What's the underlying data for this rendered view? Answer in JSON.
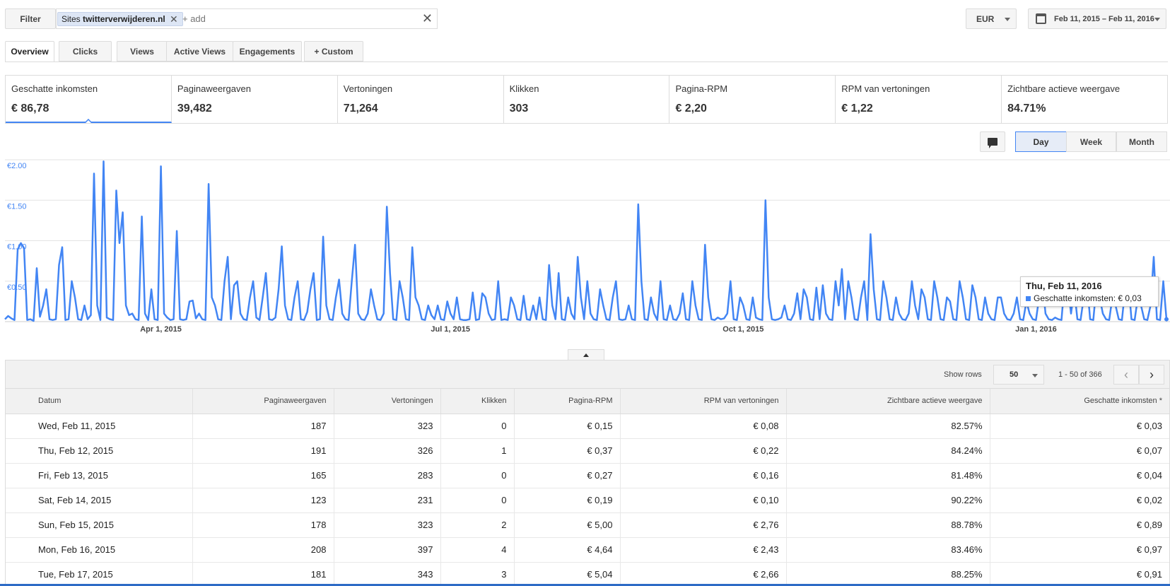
{
  "filter": {
    "button_label": "Filter",
    "chip_prefix": "Sites",
    "chip_value": "twitterverwijderen.nl",
    "chip_remove": "✕",
    "add_placeholder": "+ add",
    "clear": "✕"
  },
  "currency": {
    "label": "EUR"
  },
  "daterange": {
    "label": "Feb 11, 2015 – Feb 11, 2016"
  },
  "tabs": [
    {
      "label": "Overview"
    },
    {
      "label": "Clicks"
    },
    {
      "label": "Views"
    },
    {
      "label": "Active Views"
    },
    {
      "label": "Engagements"
    },
    {
      "label": "+ Custom"
    }
  ],
  "metrics": [
    {
      "label": "Geschatte inkomsten",
      "value": "€ 86,78"
    },
    {
      "label": "Paginaweergaven",
      "value": "39,482"
    },
    {
      "label": "Vertoningen",
      "value": "71,264"
    },
    {
      "label": "Klikken",
      "value": "303"
    },
    {
      "label": "Pagina-RPM",
      "value": "€ 2,20"
    },
    {
      "label": "RPM van vertoningen",
      "value": "€ 1,22"
    },
    {
      "label": "Zichtbare actieve weergave",
      "value": "84.71%"
    }
  ],
  "granularity": {
    "day": "Day",
    "week": "Week",
    "month": "Month"
  },
  "tooltip": {
    "date": "Thu, Feb 11, 2016",
    "series": "Geschatte inkomsten:",
    "value": "€ 0,03"
  },
  "chart_data": {
    "type": "line",
    "x_tick_labels": [
      "Apr 1, 2015",
      "Jul 1, 2015",
      "Oct 1, 2015",
      "Jan 1, 2016"
    ],
    "y_tick_labels": [
      "€0.50",
      "€1.00",
      "€1.50",
      "€2.00"
    ],
    "ylim": [
      0,
      2.0
    ],
    "line_color": "#4285f4",
    "series": [
      {
        "values": [
          0.03,
          0.07,
          0.04,
          0.02,
          0.89,
          0.97,
          0.91,
          0.02,
          0.03,
          0.01,
          0.66,
          0.06,
          0.2,
          0.4,
          0.03,
          0.02,
          0.03,
          0.7,
          0.92,
          0.02,
          0.03,
          0.5,
          0.3,
          0.03,
          0.02,
          0.2,
          0.03,
          0.08,
          1.83,
          0.2,
          0.02,
          1.98,
          0.05,
          0.03,
          0.02,
          1.62,
          0.97,
          1.35,
          0.2,
          0.08,
          0.1,
          0.03,
          0.02,
          1.3,
          0.1,
          0.02,
          0.4,
          0.03,
          0.02,
          1.92,
          0.1,
          0.05,
          0.02,
          0.03,
          1.12,
          0.03,
          0.02,
          0.03,
          0.25,
          0.26,
          0.04,
          0.1,
          0.03,
          0.02,
          1.7,
          0.3,
          0.2,
          0.03,
          0.02,
          0.5,
          0.8,
          0.03,
          0.45,
          0.5,
          0.1,
          0.03,
          0.02,
          0.3,
          0.5,
          0.05,
          0.02,
          0.3,
          0.6,
          0.03,
          0.02,
          0.05,
          0.4,
          0.93,
          0.2,
          0.03,
          0.02,
          0.3,
          0.5,
          0.03,
          0.02,
          0.12,
          0.4,
          0.6,
          0.02,
          0.03,
          1.05,
          0.2,
          0.03,
          0.02,
          0.3,
          0.52,
          0.1,
          0.03,
          0.02,
          0.5,
          0.95,
          0.1,
          0.03,
          0.02,
          0.1,
          0.4,
          0.2,
          0.03,
          0.02,
          0.1,
          1.42,
          0.6,
          0.03,
          0.02,
          0.5,
          0.3,
          0.03,
          0.02,
          0.92,
          0.3,
          0.2,
          0.03,
          0.02,
          0.2,
          0.08,
          0.03,
          0.2,
          0.03,
          0.02,
          0.25,
          0.1,
          0.03,
          0.3,
          0.03,
          0.02,
          0.02,
          0.03,
          0.36,
          0.02,
          0.03,
          0.35,
          0.3,
          0.1,
          0.02,
          0.03,
          0.5,
          0.02,
          0.03,
          0.02,
          0.3,
          0.2,
          0.03,
          0.02,
          0.32,
          0.03,
          0.02,
          0.2,
          0.03,
          0.3,
          0.03,
          0.02,
          0.7,
          0.2,
          0.03,
          0.6,
          0.03,
          0.02,
          0.3,
          0.1,
          0.03,
          0.8,
          0.3,
          0.03,
          0.5,
          0.1,
          0.03,
          0.02,
          0.4,
          0.2,
          0.03,
          0.02,
          0.3,
          0.5,
          0.03,
          0.02,
          0.03,
          0.2,
          0.03,
          0.02,
          1.45,
          0.5,
          0.03,
          0.02,
          0.3,
          0.1,
          0.02,
          0.5,
          0.03,
          0.02,
          0.2,
          0.03,
          0.02,
          0.1,
          0.35,
          0.03,
          0.02,
          0.5,
          0.2,
          0.03,
          0.02,
          0.95,
          0.3,
          0.03,
          0.02,
          0.05,
          0.03,
          0.04,
          0.1,
          0.5,
          0.03,
          0.02,
          0.3,
          0.2,
          0.03,
          0.02,
          0.3,
          0.05,
          0.03,
          0.02,
          1.5,
          0.3,
          0.03,
          0.02,
          0.03,
          0.05,
          0.2,
          0.03,
          0.02,
          0.1,
          0.35,
          0.03,
          0.4,
          0.3,
          0.03,
          0.02,
          0.42,
          0.03,
          0.45,
          0.1,
          0.03,
          0.02,
          0.5,
          0.2,
          0.65,
          0.03,
          0.5,
          0.3,
          0.03,
          0.02,
          0.3,
          0.5,
          0.02,
          1.08,
          0.4,
          0.03,
          0.02,
          0.5,
          0.3,
          0.03,
          0.02,
          0.3,
          0.1,
          0.03,
          0.02,
          0.1,
          0.5,
          0.2,
          0.03,
          0.4,
          0.3,
          0.03,
          0.02,
          0.5,
          0.3,
          0.03,
          0.02,
          0.3,
          0.25,
          0.03,
          0.02,
          0.5,
          0.3,
          0.03,
          0.02,
          0.45,
          0.3,
          0.03,
          0.02,
          0.3,
          0.1,
          0.03,
          0.02,
          0.3,
          0.3,
          0.1,
          0.03,
          0.02,
          0.1,
          0.3,
          0.03,
          0.02,
          0.25,
          0.1,
          0.03,
          0.02,
          0.3,
          0.5,
          0.1,
          0.03,
          0.02,
          0.05,
          0.03,
          0.02,
          0.5,
          0.45,
          0.1,
          0.4,
          0.03,
          0.02,
          0.3,
          0.5,
          0.03,
          0.02,
          0.45,
          0.3,
          0.1,
          0.03,
          0.02,
          0.3,
          0.2,
          0.03,
          0.02,
          0.4,
          0.5,
          0.03,
          0.02,
          0.3,
          0.2,
          0.03,
          0.02,
          0.2,
          0.8,
          0.03,
          0.02,
          0.5,
          0.03
        ]
      }
    ]
  },
  "pager": {
    "show_rows_label": "Show rows",
    "rows_value": "50",
    "range": "1 - 50 of 366",
    "prev": "‹",
    "next": "›"
  },
  "table": {
    "headers": [
      "Datum",
      "Paginaweergaven",
      "Vertoningen",
      "Klikken",
      "Pagina-RPM",
      "RPM van vertoningen",
      "Zichtbare actieve weergave",
      "Geschatte inkomsten *"
    ],
    "rows": [
      [
        "Wed, Feb 11, 2015",
        "187",
        "323",
        "0",
        "€ 0,15",
        "€ 0,08",
        "82.57%",
        "€ 0,03"
      ],
      [
        "Thu, Feb 12, 2015",
        "191",
        "326",
        "1",
        "€ 0,37",
        "€ 0,22",
        "84.24%",
        "€ 0,07"
      ],
      [
        "Fri, Feb 13, 2015",
        "165",
        "283",
        "0",
        "€ 0,27",
        "€ 0,16",
        "81.48%",
        "€ 0,04"
      ],
      [
        "Sat, Feb 14, 2015",
        "123",
        "231",
        "0",
        "€ 0,19",
        "€ 0,10",
        "90.22%",
        "€ 0,02"
      ],
      [
        "Sun, Feb 15, 2015",
        "178",
        "323",
        "2",
        "€ 5,00",
        "€ 2,76",
        "88.78%",
        "€ 0,89"
      ],
      [
        "Mon, Feb 16, 2015",
        "208",
        "397",
        "4",
        "€ 4,64",
        "€ 2,43",
        "83.46%",
        "€ 0,97"
      ],
      [
        "Tue, Feb 17, 2015",
        "181",
        "343",
        "3",
        "€ 5,04",
        "€ 2,66",
        "88.25%",
        "€ 0,91"
      ]
    ]
  }
}
